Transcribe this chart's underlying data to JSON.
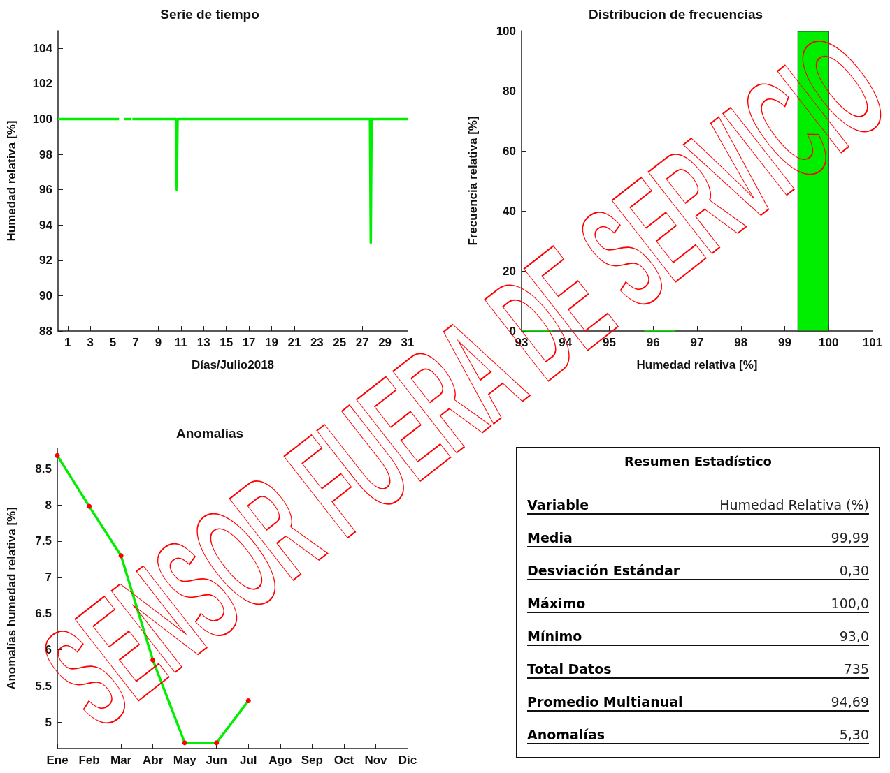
{
  "chart_data": [
    {
      "type": "line",
      "title": "Serie de tiempo",
      "xlabel": "Días/Julio2018",
      "ylabel": "Humedad relativa [%]",
      "color": "#00ee00",
      "x": [
        0.15,
        5.54,
        5.7,
        5.97,
        6.58,
        6.65,
        6.71,
        10.55,
        10.63,
        10.7,
        27.68,
        27.75,
        27.82,
        31
      ],
      "values": [
        100,
        100,
        null,
        100,
        100,
        null,
        100,
        100,
        96,
        100,
        100,
        93,
        100,
        100
      ],
      "xlim": [
        0.15,
        31
      ],
      "xticks": [
        1,
        3,
        5,
        7,
        9,
        11,
        13,
        15,
        17,
        19,
        21,
        23,
        25,
        27,
        29,
        31
      ],
      "ylim": [
        88,
        105
      ],
      "yticks": [
        88,
        90,
        92,
        94,
        96,
        98,
        100,
        102,
        104
      ]
    },
    {
      "type": "histogram",
      "title": "Distribucion de frecuencias",
      "xlabel": "Humedad relativa [%]",
      "ylabel": "Frecuencia relativa [%]",
      "color": "#00ee00",
      "bins": [
        93,
        93.7,
        94.4,
        95.1,
        95.8,
        96.5,
        97.2,
        97.9,
        98.6,
        99.3,
        100
      ],
      "values": [
        0.1,
        0,
        0,
        0,
        0.1,
        0,
        0,
        0,
        0,
        99.8
      ],
      "xlim": [
        93,
        101
      ],
      "xticks": [
        93,
        94,
        95,
        96,
        97,
        98,
        99,
        100,
        101
      ],
      "ylim": [
        0,
        100
      ],
      "yticks": [
        0,
        20,
        40,
        60,
        80,
        100
      ]
    },
    {
      "type": "line",
      "title": "Anomalías",
      "ylabel": "Anomalías humedad relativa [%]",
      "marker": "circle",
      "categories": [
        "Ene",
        "Feb",
        "Mar",
        "Abr",
        "May",
        "Jun",
        "Jul",
        "Ago",
        "Sep",
        "Oct",
        "Nov",
        "Dic"
      ],
      "series": [
        {
          "color": "#00ee00",
          "colors": [
            "#ff0000",
            "#ff0000",
            "#ff0000",
            "#ff0000",
            "#ff0000",
            "#ff0000",
            "#ff0000",
            null,
            null,
            null,
            null,
            null
          ],
          "values": [
            8.68,
            7.98,
            7.3,
            5.86,
            4.72,
            4.72,
            5.3,
            null,
            null,
            null,
            null,
            null
          ]
        }
      ],
      "ylim": [
        4.64,
        8.78
      ],
      "yticks": [
        5,
        5.5,
        6,
        6.5,
        7,
        7.5,
        8,
        8.5
      ]
    },
    {
      "type": "other",
      "title": "Resumen Estadístico",
      "annotations": [
        "Variable",
        "Humedad Relativa (%)",
        "Media",
        "99,99",
        "Desviación Estándar",
        "0,30",
        "Máximo",
        "100,0",
        "Mínimo",
        "93,0",
        "Total Datos",
        "735",
        "Promedio Multianual",
        "94,69",
        "Anomalías",
        "5,30"
      ]
    },
    {
      "type": "other",
      "annotations": [
        "SENSOR FUERA DE SERVICIO"
      ]
    }
  ]
}
